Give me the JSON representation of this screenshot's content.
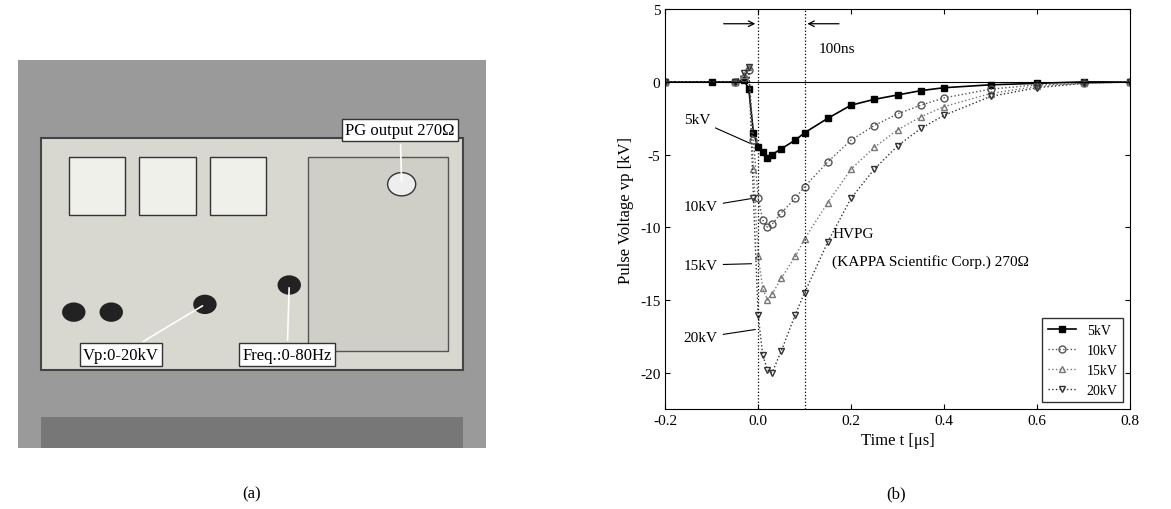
{
  "panel_labels": [
    "(a)",
    "(b)"
  ],
  "panel_a": {
    "annotations": [
      "PG output 270Ω",
      "Vp:0-20kV",
      "Freq.:0-80Hz"
    ]
  },
  "chart_data": {
    "type": "line",
    "x_label": "Time t [μs]",
    "y_label": "Pulse Voltage vp [kV]",
    "xlim": [
      -0.2,
      0.8
    ],
    "xticks": [
      -0.2,
      0.0,
      0.2,
      0.4,
      0.6,
      0.8
    ],
    "ylim": [
      -22.5,
      5
    ],
    "yticks": [
      -20,
      -15,
      -10,
      -5,
      0,
      5
    ],
    "vlines": [
      0.0,
      0.1
    ],
    "annotations": [
      "5kV",
      "10kV",
      "15kV",
      "20kV",
      "HVPG",
      "(KAPPA Scientific Corp.) 270Ω",
      "100ns"
    ],
    "legend": "lower right",
    "series": [
      {
        "name": "5kV",
        "color": "#000000",
        "marker": "square",
        "line_style": "solid",
        "x": [
          -0.2,
          -0.1,
          -0.05,
          -0.03,
          -0.02,
          -0.01,
          0.0,
          0.01,
          0.02,
          0.03,
          0.05,
          0.08,
          0.1,
          0.15,
          0.2,
          0.25,
          0.3,
          0.35,
          0.4,
          0.5,
          0.6,
          0.7,
          0.8
        ],
        "values": [
          0,
          0,
          0,
          0.1,
          -0.5,
          -3.5,
          -4.5,
          -4.8,
          -5.2,
          -5.0,
          -4.6,
          -4.0,
          -3.5,
          -2.5,
          -1.6,
          -1.2,
          -0.9,
          -0.6,
          -0.4,
          -0.2,
          -0.1,
          0,
          0
        ]
      },
      {
        "name": "10kV",
        "color": "#555555",
        "marker": "circle",
        "line_style": "dotted",
        "x": [
          -0.2,
          -0.05,
          -0.03,
          -0.02,
          -0.01,
          0.0,
          0.01,
          0.02,
          0.03,
          0.05,
          0.08,
          0.1,
          0.15,
          0.2,
          0.25,
          0.3,
          0.35,
          0.4,
          0.5,
          0.6,
          0.7,
          0.8
        ],
        "values": [
          0,
          0,
          0.3,
          0.8,
          -4,
          -8,
          -9.5,
          -10.0,
          -9.8,
          -9.0,
          -8.0,
          -7.2,
          -5.5,
          -4.0,
          -3.0,
          -2.2,
          -1.6,
          -1.1,
          -0.5,
          -0.2,
          -0.1,
          0
        ]
      },
      {
        "name": "15kV",
        "color": "#777777",
        "marker": "triangle_up",
        "line_style": "dotted",
        "x": [
          -0.2,
          -0.05,
          -0.03,
          -0.02,
          -0.01,
          0.0,
          0.01,
          0.02,
          0.03,
          0.05,
          0.08,
          0.1,
          0.15,
          0.2,
          0.25,
          0.3,
          0.35,
          0.4,
          0.5,
          0.6,
          0.7,
          0.8
        ],
        "values": [
          0,
          0,
          0.5,
          1.0,
          -6,
          -12,
          -14.2,
          -15.0,
          -14.6,
          -13.5,
          -12.0,
          -10.8,
          -8.3,
          -6.0,
          -4.5,
          -3.3,
          -2.4,
          -1.7,
          -0.8,
          -0.3,
          -0.1,
          0
        ]
      },
      {
        "name": "20kV",
        "color": "#333333",
        "marker": "triangle_down",
        "line_style": "dotted",
        "x": [
          -0.2,
          -0.05,
          -0.03,
          -0.02,
          -0.01,
          0.0,
          0.01,
          0.02,
          0.03,
          0.05,
          0.08,
          0.1,
          0.15,
          0.2,
          0.25,
          0.3,
          0.35,
          0.4,
          0.5,
          0.6,
          0.7,
          0.8
        ],
        "values": [
          0,
          0,
          0.6,
          1.0,
          -8,
          -16,
          -18.8,
          -19.8,
          -20.0,
          -18.5,
          -16.0,
          -14.5,
          -11.0,
          -8.0,
          -6.0,
          -4.4,
          -3.2,
          -2.3,
          -1.0,
          -0.4,
          -0.1,
          0
        ]
      }
    ]
  }
}
